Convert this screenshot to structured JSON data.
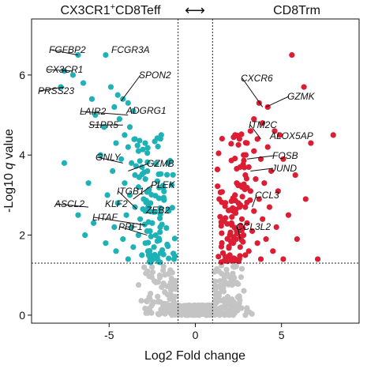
{
  "chart_data": {
    "type": "scatter",
    "title_left_base": "CX3CR1",
    "title_left_sup": "+",
    "title_left_rest": "CD8Teff",
    "title_right": "CD8Trm",
    "title_arrow": "⟷",
    "xlabel": "Log2 Fold change",
    "ylabel_pre": "-Log10 ",
    "ylabel_italic": "q",
    "ylabel_post": " value",
    "xlim": [
      -9.5,
      9.5
    ],
    "ylim": [
      -0.2,
      7.4
    ],
    "x_ticks": [
      -5,
      0,
      5
    ],
    "x_tick_labels": [
      "-5",
      "0",
      "5"
    ],
    "y_ticks": [
      0,
      2,
      4,
      6
    ],
    "y_tick_labels": [
      "0",
      "2",
      "4",
      "6"
    ],
    "thresholds": {
      "fc": [
        -1,
        1
      ],
      "q": 1.3
    },
    "colors": {
      "down": "#1eb1b5",
      "up": "#dc1e35",
      "ns": "#c4c4c4"
    },
    "series": [
      {
        "name": "",
        "points": [
          [
            -6.8,
            6.5
          ],
          [
            -5.2,
            6.5
          ],
          [
            -7.6,
            6.1
          ],
          [
            -7.1,
            6.0
          ],
          [
            -7.8,
            5.7
          ],
          [
            -6.5,
            5.8
          ],
          [
            -6.0,
            5.4
          ],
          [
            -4.9,
            5.7
          ],
          [
            -4.5,
            5.5
          ],
          [
            -4.2,
            5.4
          ],
          [
            -3.9,
            5.3
          ],
          [
            -4.7,
            5.2
          ],
          [
            -3.6,
            5.1
          ],
          [
            -5.8,
            5.0
          ],
          [
            -4.4,
            4.9
          ],
          [
            -3.8,
            4.7
          ],
          [
            -5.3,
            4.7
          ],
          [
            -4.1,
            4.5
          ],
          [
            -3.5,
            4.4
          ],
          [
            -4.6,
            4.3
          ],
          [
            -3.9,
            4.2
          ],
          [
            -3.3,
            4.1
          ],
          [
            -5.5,
            4.0
          ],
          [
            -4.3,
            3.9
          ],
          [
            -3.7,
            3.8
          ],
          [
            -3.1,
            3.7
          ],
          [
            -7.6,
            3.8
          ],
          [
            -4.8,
            3.6
          ],
          [
            -3.5,
            3.5
          ],
          [
            -2.9,
            3.4
          ],
          [
            -4.1,
            3.3
          ],
          [
            -6.2,
            3.3
          ],
          [
            -3.3,
            3.2
          ],
          [
            -2.7,
            3.1
          ],
          [
            -5.1,
            3.0
          ],
          [
            -3.8,
            3.0
          ],
          [
            -3.0,
            2.9
          ],
          [
            -4.5,
            2.8
          ],
          [
            -2.6,
            2.8
          ],
          [
            -3.5,
            2.7
          ],
          [
            -6.8,
            2.5
          ],
          [
            -2.9,
            2.6
          ],
          [
            -4.0,
            2.5
          ],
          [
            -5.9,
            2.3
          ],
          [
            -3.2,
            2.4
          ],
          [
            -2.5,
            2.3
          ],
          [
            -4.7,
            2.2
          ],
          [
            -3.7,
            2.2
          ],
          [
            -2.8,
            2.1
          ],
          [
            -6.4,
            2.0
          ],
          [
            -3.3,
            2.0
          ],
          [
            -2.3,
            2.0
          ],
          [
            -4.2,
            1.9
          ],
          [
            -5.2,
            1.8
          ],
          [
            -2.9,
            1.8
          ],
          [
            -2.4,
            1.7
          ],
          [
            -3.6,
            1.7
          ],
          [
            -4.6,
            1.6
          ],
          [
            -2.6,
            1.5
          ],
          [
            -3.1,
            1.5
          ],
          [
            -2.2,
            1.4
          ],
          [
            -3.9,
            1.4
          ]
        ]
      },
      {
        "name": "",
        "points": [
          [
            5.6,
            6.5
          ],
          [
            6.3,
            5.7
          ],
          [
            3.7,
            5.3
          ],
          [
            4.2,
            5.2
          ],
          [
            3.4,
            4.9
          ],
          [
            3.9,
            4.8
          ],
          [
            4.6,
            4.6
          ],
          [
            3.2,
            4.6
          ],
          [
            3.6,
            4.4
          ],
          [
            8.0,
            4.5
          ],
          [
            4.9,
            4.5
          ],
          [
            6.7,
            4.3
          ],
          [
            3.0,
            4.3
          ],
          [
            4.2,
            4.2
          ],
          [
            3.4,
            4.1
          ],
          [
            2.8,
            4.0
          ],
          [
            3.8,
            3.9
          ],
          [
            5.1,
            3.9
          ],
          [
            2.6,
            3.7
          ],
          [
            3.1,
            3.7
          ],
          [
            4.4,
            3.6
          ],
          [
            2.9,
            3.5
          ],
          [
            5.8,
            3.5
          ],
          [
            3.5,
            3.4
          ],
          [
            2.4,
            3.3
          ],
          [
            4.0,
            3.3
          ],
          [
            2.7,
            3.2
          ],
          [
            3.2,
            3.1
          ],
          [
            4.8,
            3.1
          ],
          [
            2.3,
            3.0
          ],
          [
            3.7,
            2.9
          ],
          [
            6.4,
            2.9
          ],
          [
            2.5,
            2.8
          ],
          [
            2.9,
            2.7
          ],
          [
            4.3,
            2.7
          ],
          [
            2.2,
            2.6
          ],
          [
            3.4,
            2.6
          ],
          [
            5.4,
            2.5
          ],
          [
            2.7,
            2.4
          ],
          [
            3.9,
            2.4
          ],
          [
            2.1,
            2.3
          ],
          [
            3.0,
            2.3
          ],
          [
            4.7,
            2.2
          ],
          [
            2.4,
            2.1
          ],
          [
            3.3,
            2.1
          ],
          [
            2.0,
            2.0
          ],
          [
            2.8,
            2.0
          ],
          [
            4.1,
            1.9
          ],
          [
            5.9,
            1.9
          ],
          [
            2.2,
            1.8
          ],
          [
            3.6,
            1.8
          ],
          [
            2.6,
            1.7
          ],
          [
            3.1,
            1.6
          ],
          [
            4.5,
            1.6
          ],
          [
            2.0,
            1.5
          ],
          [
            2.9,
            1.5
          ],
          [
            3.8,
            1.4
          ],
          [
            7.1,
            1.4
          ],
          [
            2.3,
            1.4
          ],
          [
            5.1,
            1.4
          ]
        ]
      }
    ],
    "labels": [
      {
        "text": "FGFBP2",
        "x": -6.8,
        "y": 6.5
      },
      {
        "text": "FCGR3A",
        "x": -5.2,
        "y": 6.5
      },
      {
        "text": "CX3CR1",
        "x": -7.1,
        "y": 6.1
      },
      {
        "text": "PRSS23",
        "x": -7.6,
        "y": 5.7
      },
      {
        "text": "SPON2",
        "x": -4.3,
        "y": 5.35
      },
      {
        "text": "LAIR2",
        "x": -3.9,
        "y": 5.0
      },
      {
        "text": "ADGRG1",
        "x": -4.1,
        "y": 4.95
      },
      {
        "text": "S1PR5",
        "x": -4.2,
        "y": 4.75
      },
      {
        "text": "GNLY",
        "x": -4.2,
        "y": 3.8
      },
      {
        "text": "GZMB",
        "x": -3.9,
        "y": 3.6
      },
      {
        "text": "PLEK",
        "x": -3.6,
        "y": 2.9
      },
      {
        "text": "ITGB1",
        "x": -3.4,
        "y": 2.65
      },
      {
        "text": "ASCL2",
        "x": -6.2,
        "y": 2.7
      },
      {
        "text": "KLF2",
        "x": -4.9,
        "y": 2.65
      },
      {
        "text": "ZEB2",
        "x": -3.2,
        "y": 2.45
      },
      {
        "text": "LITAF",
        "x": -2.9,
        "y": 2.25
      },
      {
        "text": "PRF1",
        "x": -2.8,
        "y": 2.0
      },
      {
        "text": "CXCR6",
        "x": 3.9,
        "y": 5.2
      },
      {
        "text": "GZMK",
        "x": 4.1,
        "y": 5.2
      },
      {
        "text": "ITM2C",
        "x": 3.8,
        "y": 4.4
      },
      {
        "text": "ALOX5AP",
        "x": 4.4,
        "y": 4.3
      },
      {
        "text": "FOSB",
        "x": 3.0,
        "y": 3.9
      },
      {
        "text": "JUND",
        "x": 3.2,
        "y": 3.6
      },
      {
        "text": "CCL3",
        "x": 3.3,
        "y": 2.7
      },
      {
        "text": "CCL3L2",
        "x": 2.6,
        "y": 1.9
      }
    ]
  }
}
